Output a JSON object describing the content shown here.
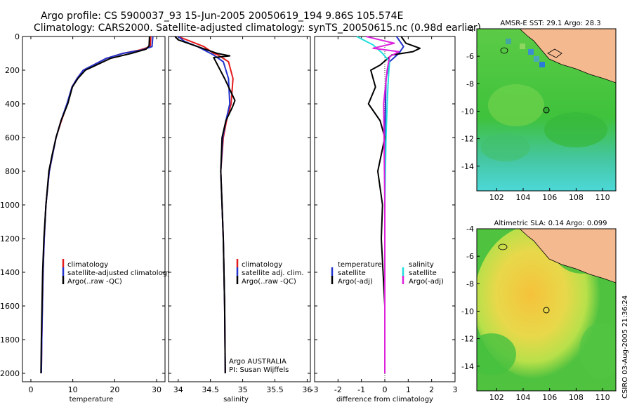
{
  "header": {
    "line1": "Argo profile: CS 5900037_93 15-Jun-2005 20050619_194 9.86S 105.574E",
    "line2": "Climatology: CARS2000. Satellite-adjusted climatology: synTS_20050615.nc (0.98d earlier)"
  },
  "footer": {
    "credit": "CSIRO 03-Aug-2005 21:36:24"
  },
  "colors": {
    "climatology": "#e41a1c",
    "satellite": "#2233cc",
    "argo": "#000000",
    "cyan": "#22dddd",
    "magenta": "#dd22dd",
    "land": "#f4b98f"
  },
  "chart_data": [
    {
      "type": "line",
      "name": "temperature-profile",
      "xlabel": "temperature",
      "xlim": [
        -2,
        32
      ],
      "xticks": [
        "0",
        "10",
        "20",
        "30"
      ],
      "ylim": [
        2050,
        0
      ],
      "yticks": [
        "0",
        "200",
        "400",
        "600",
        "800",
        "1000",
        "1200",
        "1400",
        "1600",
        "1800",
        "2000"
      ],
      "legend": [
        "climatology",
        "satellite-adjusted climatology",
        "Argo(..raw -QC)"
      ],
      "series": [
        {
          "name": "climatology",
          "color": "#e41a1c",
          "x": [
            28.6,
            28.5,
            26,
            22,
            18,
            12.5,
            11,
            9.8,
            8.7,
            7.3,
            6,
            5.2,
            4.4,
            3.6,
            3.2,
            2.9,
            2.6,
            2.5
          ],
          "y": [
            0,
            60,
            80,
            100,
            130,
            200,
            250,
            300,
            400,
            500,
            600,
            700,
            800,
            1000,
            1200,
            1400,
            1800,
            2000
          ]
        },
        {
          "name": "satellite-adjusted climatology",
          "color": "#2233cc",
          "x": [
            29.1,
            28.9,
            26.5,
            22,
            18,
            12.5,
            11,
            9.8,
            8.6,
            7.2,
            6,
            5.2,
            4.4,
            3.6,
            3.2,
            2.9,
            2.6,
            2.5
          ],
          "y": [
            0,
            60,
            80,
            100,
            130,
            200,
            250,
            300,
            400,
            500,
            600,
            700,
            800,
            1000,
            1200,
            1400,
            1800,
            2000
          ]
        },
        {
          "name": "Argo(..raw -QC)",
          "color": "#000000",
          "x": [
            28.3,
            28.2,
            27.5,
            24,
            19,
            13,
            11.2,
            9.9,
            8.8,
            7.2,
            6,
            5.1,
            4.3,
            3.6,
            3.1,
            2.8,
            2.5,
            2.4
          ],
          "y": [
            0,
            55,
            75,
            100,
            130,
            200,
            250,
            300,
            400,
            500,
            600,
            700,
            800,
            1000,
            1200,
            1400,
            1800,
            2000
          ]
        }
      ]
    },
    {
      "type": "line",
      "name": "salinity-profile",
      "xlabel": "salinity",
      "xlim": [
        33.85,
        36.05
      ],
      "xticks": [
        "34",
        "34.5",
        "35",
        "35.5",
        "36"
      ],
      "ylim": [
        2050,
        0
      ],
      "legend": [
        "climatology",
        "satellite adj. clim.",
        "Argo(..raw -QC)"
      ],
      "notes": [
        "Argo AUSTRALIA",
        "PI: Susan Wijffels"
      ],
      "series": [
        {
          "name": "climatology",
          "color": "#e41a1c",
          "x": [
            34.0,
            34.2,
            34.4,
            34.55,
            34.62,
            34.78,
            34.85,
            34.82,
            34.75,
            34.7,
            34.66,
            34.68,
            34.7,
            34.72,
            34.73
          ],
          "y": [
            0,
            30,
            60,
            100,
            110,
            150,
            250,
            400,
            500,
            600,
            800,
            1000,
            1200,
            1600,
            2000
          ]
        },
        {
          "name": "satellite adj. clim.",
          "color": "#2233cc",
          "x": [
            34.0,
            34.1,
            34.3,
            34.5,
            34.55,
            34.7,
            34.78,
            34.8,
            34.74,
            34.69,
            34.66,
            34.68,
            34.7,
            34.72,
            34.73
          ],
          "y": [
            0,
            30,
            60,
            100,
            110,
            150,
            250,
            400,
            500,
            600,
            800,
            1000,
            1200,
            1600,
            2000
          ]
        },
        {
          "name": "Argo(..raw -QC)",
          "color": "#000000",
          "x": [
            33.95,
            34.0,
            34.15,
            34.45,
            34.6,
            34.8,
            34.55,
            34.72,
            34.88,
            34.84,
            34.74,
            34.68,
            34.66,
            34.68,
            34.7,
            34.72,
            34.73
          ],
          "y": [
            0,
            20,
            40,
            80,
            100,
            115,
            125,
            250,
            380,
            420,
            500,
            600,
            800,
            1000,
            1200,
            1600,
            2000
          ]
        }
      ]
    },
    {
      "type": "line",
      "name": "difference-from-climatology",
      "xlabel": "difference from climatology",
      "xlim": [
        -3,
        3
      ],
      "xticks": [
        "-3",
        "-2",
        "-1",
        "0",
        "1",
        "2",
        "3"
      ],
      "ylim": [
        2050,
        0
      ],
      "legend_left": [
        "temperature",
        "satellite",
        "Argo(-adj)"
      ],
      "legend_right": [
        "salinity",
        "satellite",
        "Argo(-adj)"
      ],
      "series": [
        {
          "name": "temperature satellite",
          "color": "#2233cc",
          "x": [
            0.5,
            0.8,
            0.6,
            0.2,
            0.05,
            0,
            0
          ],
          "y": [
            0,
            60,
            100,
            150,
            250,
            600,
            2000
          ]
        },
        {
          "name": "temperature Argo(-adj)",
          "color": "#000000",
          "x": [
            0.7,
            0.9,
            1.5,
            1.2,
            0.3,
            -0.2,
            -0.6,
            -0.4,
            -0.7,
            -0.2,
            0,
            -0.3,
            -0.1,
            -0.15,
            0,
            0
          ],
          "y": [
            0,
            40,
            70,
            90,
            110,
            170,
            200,
            300,
            400,
            500,
            600,
            800,
            1000,
            1200,
            1600,
            2000
          ]
        },
        {
          "name": "salinity satellite",
          "color": "#22dddd",
          "x": [
            -1.2,
            -0.5,
            -0.1,
            0.2,
            0.15,
            0.1,
            0.05,
            0,
            0
          ],
          "y": [
            0,
            50,
            100,
            150,
            250,
            400,
            600,
            1000,
            2000
          ]
        },
        {
          "name": "salinity Argo(-adj)",
          "color": "#dd22dd",
          "x": [
            -0.8,
            -0.2,
            0.4,
            -0.5,
            0.6,
            0.2,
            0.1,
            -0.05,
            0,
            0
          ],
          "y": [
            0,
            20,
            40,
            70,
            90,
            120,
            200,
            400,
            1000,
            2000
          ]
        }
      ]
    },
    {
      "type": "heatmap",
      "name": "sst-map",
      "title": "AMSR-E SST: 29.1 Argo: 28.3",
      "xlim": [
        100.5,
        111
      ],
      "ylim": [
        -15.8,
        -4
      ],
      "xticks": [
        "102",
        "104",
        "106",
        "108",
        "110"
      ],
      "yticks": [
        "-4",
        "-6",
        "-8",
        "-10",
        "-12",
        "-14"
      ],
      "marker": {
        "lon": 105.574,
        "lat": -9.86
      }
    },
    {
      "type": "heatmap",
      "name": "sla-map",
      "title": "Altimetric SLA: 0.14 Argo: 0.099",
      "xlim": [
        100.5,
        111
      ],
      "ylim": [
        -15.8,
        -4
      ],
      "xticks": [
        "102",
        "104",
        "106",
        "108",
        "110"
      ],
      "yticks": [
        "-4",
        "-6",
        "-8",
        "-10",
        "-12",
        "-14"
      ],
      "marker": {
        "lon": 105.574,
        "lat": -9.86
      }
    }
  ]
}
